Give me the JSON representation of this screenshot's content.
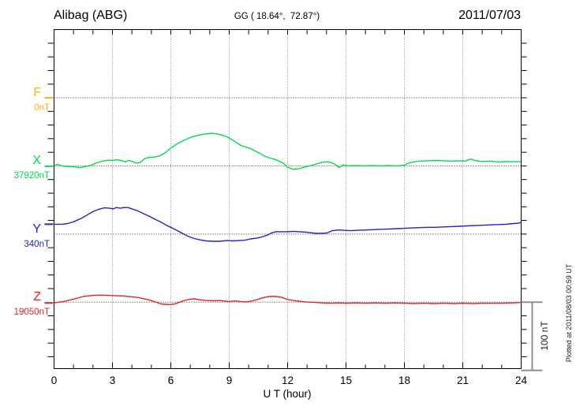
{
  "chart_data": {
    "type": "line",
    "title": "Alibag (ABG)",
    "subtitle": "GG ( 18.64°,  72.87°)",
    "date": "2011/07/03",
    "xlabel": "U T (hour)",
    "x_range_hours": [
      0,
      24
    ],
    "x_major_ticks": [
      0,
      3,
      6,
      9,
      12,
      15,
      18,
      21,
      24
    ],
    "x_minor_step_hours": 1,
    "grid": "dotted vertical lines at 3-hour intervals, dotted horizontal baseline per component",
    "y_minor_tick_nT": 20,
    "baseline_spacing_nT": 100,
    "scale_bar": {
      "label": "100 nT",
      "nT": 100
    },
    "plotted_note": "Plotted at 2011/08/03 00:59 UT",
    "series": [
      {
        "name": "F",
        "baseline_value": "0nT",
        "color": "#FFB400",
        "points": []
      },
      {
        "name": "X",
        "baseline_value": "37920nT",
        "color": "#00DC46",
        "points": [
          [
            0,
            -0.5
          ],
          [
            0.15,
            2.5
          ],
          [
            0.3,
            1
          ],
          [
            0.5,
            -0.5
          ],
          [
            0.8,
            -1
          ],
          [
            1.1,
            -1.5
          ],
          [
            1.35,
            -2.5
          ],
          [
            1.6,
            -1
          ],
          [
            1.9,
            1
          ],
          [
            2.2,
            4.5
          ],
          [
            2.5,
            7
          ],
          [
            2.8,
            8.5
          ],
          [
            3.0,
            8
          ],
          [
            3.2,
            9
          ],
          [
            3.45,
            8
          ],
          [
            3.65,
            6
          ],
          [
            3.85,
            8
          ],
          [
            4.05,
            6
          ],
          [
            4.25,
            4
          ],
          [
            4.45,
            5.5
          ],
          [
            4.65,
            10.5
          ],
          [
            4.9,
            12.5
          ],
          [
            5.15,
            13
          ],
          [
            5.4,
            14.5
          ],
          [
            5.7,
            19
          ],
          [
            6.0,
            26
          ],
          [
            6.3,
            32
          ],
          [
            6.6,
            36.5
          ],
          [
            6.9,
            40.5
          ],
          [
            7.2,
            43.5
          ],
          [
            7.5,
            45.5
          ],
          [
            7.8,
            47
          ],
          [
            8.1,
            48
          ],
          [
            8.4,
            47
          ],
          [
            8.7,
            44.5
          ],
          [
            9.0,
            41
          ],
          [
            9.3,
            35.5
          ],
          [
            9.6,
            30
          ],
          [
            9.85,
            27.5
          ],
          [
            10.1,
            25.5
          ],
          [
            10.35,
            21.5
          ],
          [
            10.6,
            18
          ],
          [
            10.85,
            14
          ],
          [
            11.1,
            11.5
          ],
          [
            11.35,
            9.5
          ],
          [
            11.6,
            6.5
          ],
          [
            11.8,
            3.5
          ],
          [
            12.0,
            -2
          ],
          [
            12.3,
            -5
          ],
          [
            12.6,
            -4
          ],
          [
            12.9,
            -1.5
          ],
          [
            13.2,
            0.5
          ],
          [
            13.5,
            3
          ],
          [
            13.8,
            5.5
          ],
          [
            14.1,
            6
          ],
          [
            14.4,
            3
          ],
          [
            14.65,
            -2.5
          ],
          [
            14.85,
            1.5
          ],
          [
            15.1,
            0
          ],
          [
            15.5,
            0.5
          ],
          [
            16,
            0
          ],
          [
            16.4,
            0.5
          ],
          [
            16.8,
            0
          ],
          [
            17.2,
            0.5
          ],
          [
            17.6,
            0
          ],
          [
            18.0,
            1
          ],
          [
            18.2,
            4
          ],
          [
            18.5,
            6
          ],
          [
            18.8,
            7
          ],
          [
            19.2,
            7.5
          ],
          [
            19.6,
            8
          ],
          [
            20.0,
            7.5
          ],
          [
            20.4,
            7
          ],
          [
            20.8,
            7.5
          ],
          [
            21.1,
            7
          ],
          [
            21.4,
            10
          ],
          [
            21.7,
            7.5
          ],
          [
            22.0,
            6.5
          ],
          [
            22.4,
            7
          ],
          [
            22.8,
            5.5
          ],
          [
            23.2,
            6.5
          ],
          [
            23.6,
            6
          ],
          [
            24.0,
            6.5
          ]
        ]
      },
      {
        "name": "Y",
        "baseline_value": "340nT",
        "color": "#2222CC",
        "points": [
          [
            0,
            14.5
          ],
          [
            0.4,
            14.5
          ],
          [
            0.7,
            15.5
          ],
          [
            1.0,
            18
          ],
          [
            1.4,
            23
          ],
          [
            1.7,
            28
          ],
          [
            2.0,
            33
          ],
          [
            2.3,
            36.5
          ],
          [
            2.6,
            38.5
          ],
          [
            2.85,
            38
          ],
          [
            3.05,
            37
          ],
          [
            3.2,
            39
          ],
          [
            3.4,
            38
          ],
          [
            3.6,
            39
          ],
          [
            3.8,
            39
          ],
          [
            4.0,
            37
          ],
          [
            4.3,
            34
          ],
          [
            4.6,
            30
          ],
          [
            4.9,
            26
          ],
          [
            5.2,
            21.5
          ],
          [
            5.5,
            17.5
          ],
          [
            5.8,
            12.5
          ],
          [
            6.0,
            10
          ],
          [
            6.3,
            5.5
          ],
          [
            6.6,
            1
          ],
          [
            6.9,
            -3.5
          ],
          [
            7.2,
            -6.5
          ],
          [
            7.5,
            -8.5
          ],
          [
            7.8,
            -10
          ],
          [
            8.1,
            -10.5
          ],
          [
            8.5,
            -10.5
          ],
          [
            8.9,
            -9.5
          ],
          [
            9.2,
            -10
          ],
          [
            9.5,
            -9.5
          ],
          [
            9.8,
            -9
          ],
          [
            10.1,
            -7
          ],
          [
            10.4,
            -6
          ],
          [
            10.7,
            -4
          ],
          [
            11.0,
            -1
          ],
          [
            11.2,
            2
          ],
          [
            11.4,
            3.5
          ],
          [
            11.7,
            3.5
          ],
          [
            12.0,
            3.5
          ],
          [
            12.3,
            4
          ],
          [
            12.6,
            3.5
          ],
          [
            12.9,
            3
          ],
          [
            13.2,
            2
          ],
          [
            13.45,
            1
          ],
          [
            13.7,
            1
          ],
          [
            14.0,
            1.5
          ],
          [
            14.3,
            5
          ],
          [
            14.6,
            6
          ],
          [
            14.9,
            5.5
          ],
          [
            15.2,
            5
          ],
          [
            15.6,
            5.5
          ],
          [
            16.0,
            6
          ],
          [
            16.4,
            6.5
          ],
          [
            16.8,
            7
          ],
          [
            17.2,
            7.5
          ],
          [
            17.6,
            8
          ],
          [
            18.0,
            8.5
          ],
          [
            18.4,
            9
          ],
          [
            18.8,
            9.5
          ],
          [
            19.2,
            10
          ],
          [
            19.6,
            10
          ],
          [
            20.0,
            10.5
          ],
          [
            20.4,
            11
          ],
          [
            20.8,
            11.5
          ],
          [
            21.2,
            12
          ],
          [
            21.6,
            12.5
          ],
          [
            22.0,
            13
          ],
          [
            22.4,
            13.5
          ],
          [
            22.8,
            14
          ],
          [
            23.2,
            14.5
          ],
          [
            23.6,
            15.5
          ],
          [
            23.85,
            16
          ],
          [
            24.0,
            17.5
          ]
        ]
      },
      {
        "name": "Z",
        "baseline_value": "19050nT",
        "color": "#E62222",
        "points": [
          [
            0,
            -1
          ],
          [
            0.5,
            1
          ],
          [
            1.0,
            4.5
          ],
          [
            1.5,
            8.5
          ],
          [
            2.0,
            10
          ],
          [
            2.4,
            10.5
          ],
          [
            2.8,
            10
          ],
          [
            3.2,
            9.5
          ],
          [
            3.6,
            9
          ],
          [
            4.0,
            8
          ],
          [
            4.4,
            6.5
          ],
          [
            4.8,
            4
          ],
          [
            5.2,
            0.5
          ],
          [
            5.5,
            -2.5
          ],
          [
            5.9,
            -3.5
          ],
          [
            6.2,
            -2.5
          ],
          [
            6.45,
            0
          ],
          [
            6.7,
            2.5
          ],
          [
            7.0,
            4.5
          ],
          [
            7.2,
            5
          ],
          [
            7.5,
            3.5
          ],
          [
            7.8,
            2.5
          ],
          [
            8.2,
            2
          ],
          [
            8.5,
            2.5
          ],
          [
            8.8,
            1.5
          ],
          [
            9.0,
            1
          ],
          [
            9.3,
            2
          ],
          [
            9.6,
            1
          ],
          [
            9.9,
            0.5
          ],
          [
            10.2,
            2
          ],
          [
            10.5,
            4.5
          ],
          [
            10.8,
            7
          ],
          [
            11.1,
            8.5
          ],
          [
            11.4,
            8.5
          ],
          [
            11.7,
            7
          ],
          [
            12.0,
            4
          ],
          [
            12.3,
            2.5
          ],
          [
            12.6,
            1.5
          ],
          [
            12.9,
            0.5
          ],
          [
            13.2,
            0
          ],
          [
            13.5,
            -0.5
          ],
          [
            13.8,
            -1
          ],
          [
            14.2,
            -1.5
          ],
          [
            14.6,
            -1
          ],
          [
            15.0,
            -1.5
          ],
          [
            15.5,
            -1
          ],
          [
            16.0,
            -1.5
          ],
          [
            16.5,
            -1
          ],
          [
            17.0,
            -1.5
          ],
          [
            17.5,
            -1
          ],
          [
            18.0,
            -1.5
          ],
          [
            18.5,
            -2
          ],
          [
            19.0,
            -1.5
          ],
          [
            19.5,
            -2
          ],
          [
            20.0,
            -1.5
          ],
          [
            20.5,
            -2
          ],
          [
            21.0,
            -1.5
          ],
          [
            21.5,
            -2
          ],
          [
            22.0,
            -1.5
          ],
          [
            22.5,
            -1.5
          ],
          [
            23.0,
            -1.5
          ],
          [
            23.5,
            -1
          ],
          [
            24.0,
            -0.5
          ]
        ]
      }
    ],
    "units_note": "points are [UT hour, offset in nT from the component baseline value]"
  }
}
